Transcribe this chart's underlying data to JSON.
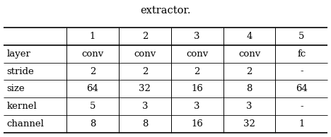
{
  "title": "extractor.",
  "col_headers": [
    "",
    "1",
    "2",
    "3",
    "4",
    "5"
  ],
  "rows": [
    [
      "layer",
      "conv",
      "conv",
      "conv",
      "conv",
      "fc"
    ],
    [
      "stride",
      "2",
      "2",
      "2",
      "2",
      "-"
    ],
    [
      "size",
      "64",
      "32",
      "16",
      "8",
      "64"
    ],
    [
      "kernel",
      "5",
      "3",
      "3",
      "3",
      "-"
    ],
    [
      "channel",
      "8",
      "8",
      "16",
      "32",
      "1"
    ]
  ],
  "figsize": [
    4.68,
    1.94
  ],
  "dpi": 100,
  "title_fontsize": 10.5,
  "cell_fontsize": 9.5,
  "bg_color": "#ffffff",
  "line_color": "#000000",
  "thick_lw": 1.2,
  "thin_lw": 0.6
}
